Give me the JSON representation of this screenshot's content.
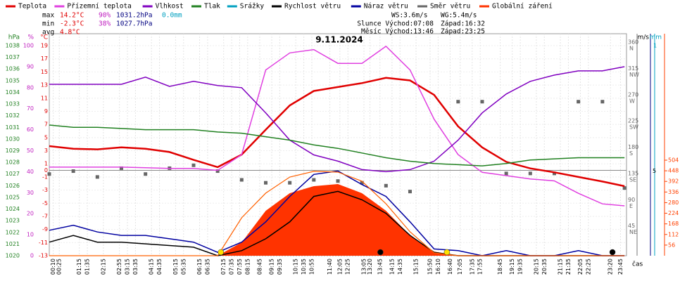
{
  "chart_data": {
    "type": "line",
    "title": "9.11.2024",
    "x": [
      "00:00",
      "01:00",
      "02:00",
      "03:00",
      "04:00",
      "05:00",
      "06:00",
      "07:00",
      "08:00",
      "09:00",
      "10:00",
      "11:00",
      "12:00",
      "13:00",
      "14:00",
      "15:00",
      "16:00",
      "17:00",
      "18:00",
      "19:00",
      "20:00",
      "21:00",
      "22:00",
      "23:00",
      "23:55"
    ],
    "xticks": [
      "00:10",
      "00:25",
      "01:15",
      "01:35",
      "02:15",
      "02:55",
      "03:15",
      "03:35",
      "04:15",
      "04:35",
      "05:15",
      "05:35",
      "06:15",
      "06:35",
      "07:15",
      "07:35",
      "07:55",
      "08:15",
      "08:45",
      "09:15",
      "09:35",
      "10:15",
      "10:35",
      "10:55",
      "11:40",
      "12:05",
      "12:25",
      "13:05",
      "13:20",
      "13:45",
      "14:15",
      "14:35",
      "15:15",
      "15:50",
      "16:10",
      "16:40",
      "17:05",
      "17:35",
      "17:55",
      "18:45",
      "19:15",
      "19:35",
      "20:15",
      "20:35",
      "21:15",
      "21:35",
      "22:05",
      "22:25",
      "23:20",
      "23:45"
    ],
    "xlabel": "čas",
    "axes": {
      "pressure": {
        "unit": "hPa",
        "color": "#208020",
        "ylim": [
          1020,
          1038
        ],
        "ticks": [
          1020,
          1021,
          1022,
          1023,
          1024,
          1025,
          1026,
          1027,
          1028,
          1029,
          1030,
          1031,
          1032,
          1033,
          1034,
          1035,
          1036,
          1037,
          1038
        ]
      },
      "humidity": {
        "unit": "%",
        "color": "#c020c0",
        "ylim": [
          0,
          100
        ],
        "ticks": [
          0,
          10,
          20,
          30,
          40,
          50,
          60,
          70,
          80,
          90,
          100
        ]
      },
      "temperature": {
        "unit": "°C",
        "color": "#e00000",
        "ylim": [
          -13,
          19
        ],
        "ticks": [
          -13,
          -11,
          -9,
          -7,
          -5,
          -3,
          -1,
          0,
          1,
          3,
          5,
          7,
          9,
          11,
          13,
          15,
          17,
          19
        ]
      },
      "direction": {
        "color": "#666666",
        "ylim": [
          0,
          360
        ],
        "ticks": [
          45,
          90,
          135,
          180,
          225,
          270,
          315,
          360
        ],
        "compass": [
          "NE",
          "E",
          "SE",
          "S",
          "SW",
          "W",
          "NW",
          "N"
        ]
      },
      "wind": {
        "unit": "m/s",
        "color": "#000080",
        "ylim": [
          0,
          12.4
        ],
        "ticks": [
          5
        ],
        "top_label": "1"
      },
      "precip": {
        "unit": "mm",
        "color": "#00a0c0"
      },
      "radiation": {
        "color": "#ff4000",
        "ylim": [
          0,
          1108
        ],
        "ticks": [
          56,
          112,
          168,
          224,
          280,
          336,
          392,
          448,
          504
        ]
      }
    },
    "series": [
      {
        "name": "Teplota",
        "color": "#e00000",
        "axis": "temperature",
        "style": "line",
        "values": [
          3.7,
          3.3,
          3.2,
          3.5,
          3.3,
          2.8,
          1.6,
          0.5,
          2.4,
          6.2,
          9.9,
          12.1,
          12.7,
          13.3,
          14.1,
          13.7,
          11.5,
          6.7,
          3.5,
          1.3,
          0.3,
          -0.3,
          -1.0,
          -1.7,
          -2.4
        ]
      },
      {
        "name": "Přízemní teplota",
        "color": "#e040e0",
        "axis": "temperature",
        "style": "line",
        "values": [
          0.5,
          0.5,
          0.5,
          0.5,
          0.4,
          0.3,
          0.3,
          0,
          2.4,
          15.3,
          17.9,
          18.4,
          16.3,
          16.3,
          18.9,
          15.3,
          7.8,
          2.4,
          -0.3,
          -0.8,
          -1.3,
          -1.6,
          -3.5,
          -5.1,
          -5.4
        ]
      },
      {
        "name": "Vlhkost",
        "color": "#8000c0",
        "axis": "humidity",
        "style": "line",
        "values": [
          81.6,
          81.6,
          81.6,
          81.6,
          85,
          80.6,
          83,
          81,
          80,
          68,
          55,
          48,
          45,
          41,
          40,
          41,
          45,
          55,
          68,
          77,
          83,
          86,
          88,
          88,
          90
        ]
      },
      {
        "name": "Tlak",
        "color": "#208020",
        "axis": "pressure",
        "style": "line",
        "values": [
          1031.2,
          1031.0,
          1031.0,
          1030.9,
          1030.8,
          1030.8,
          1030.8,
          1030.6,
          1030.5,
          1030.2,
          1029.9,
          1029.5,
          1029.2,
          1028.8,
          1028.4,
          1028.1,
          1027.9,
          1027.8,
          1027.7,
          1027.9,
          1028.2,
          1028.3,
          1028.4,
          1028.4,
          1028.4
        ]
      },
      {
        "name": "Srážky",
        "color": "#00a0c0",
        "axis": "precip",
        "style": "none",
        "values": [
          null,
          null,
          null,
          null,
          null,
          null,
          null,
          null,
          null,
          null,
          null,
          null,
          null,
          null,
          null,
          null,
          null,
          null,
          null,
          null,
          null,
          null,
          null,
          null,
          null
        ]
      },
      {
        "name": "Rychlost větru",
        "color": "#000000",
        "axis": "wind",
        "style": "line",
        "values": [
          0.8,
          1.2,
          0.8,
          0.8,
          0.7,
          0.6,
          0.5,
          0,
          0.3,
          1.0,
          2.0,
          3.5,
          3.8,
          3.3,
          2.5,
          1.2,
          0.2,
          0,
          0,
          0,
          0,
          0,
          0,
          0,
          0
        ]
      },
      {
        "name": "Náraz větru",
        "color": "#0000a0",
        "axis": "wind",
        "style": "line",
        "values": [
          1.5,
          1.8,
          1.4,
          1.2,
          1.2,
          1.0,
          0.8,
          0.2,
          0.8,
          2.0,
          3.5,
          4.8,
          5.0,
          4.2,
          3.5,
          2.0,
          0.4,
          0.3,
          0,
          0.3,
          0,
          0,
          0.3,
          0,
          0
        ]
      },
      {
        "name": "Směr větru",
        "color": "#666666",
        "axis": "direction",
        "style": "squares",
        "values": [
          140,
          145,
          135,
          150,
          140,
          150,
          155,
          145,
          130,
          125,
          125,
          130,
          128,
          125,
          120,
          110,
          null,
          264,
          264,
          141,
          141,
          141,
          264,
          264,
          116
        ]
      },
      {
        "name": "Globální záření",
        "color": "#ff3300",
        "axis": "radiation",
        "style": "area",
        "values": [
          0,
          0,
          0,
          0,
          0,
          0,
          0,
          0,
          70,
          237,
          330,
          367,
          378,
          330,
          237,
          107,
          22,
          0,
          0,
          0,
          0,
          0,
          0,
          0,
          0
        ]
      },
      {
        "color": "#ff6000",
        "axis": "radiation",
        "style": "line",
        "values": [
          0,
          0,
          0,
          0,
          0,
          0,
          0,
          0,
          200,
          330,
          415,
          445,
          441,
          393,
          274,
          126,
          15,
          0,
          0,
          0,
          0,
          0,
          0,
          0,
          0
        ]
      }
    ],
    "stats": [
      [
        "max",
        "14.2°C",
        "90%",
        "1031.2hPa",
        "0.0mm"
      ],
      [
        "min",
        "-2.3°C",
        "38%",
        "1027.7hPa"
      ],
      [
        "avg",
        "4.8°C"
      ]
    ],
    "wind_stats": [
      "WS:3.6m/s",
      "WG:5.4m/s"
    ],
    "sun": [
      "Slunce Východ:07:08",
      "Západ:16:32"
    ],
    "moon": [
      "Měsíc Východ:13:46",
      "Západ:23:25"
    ]
  }
}
